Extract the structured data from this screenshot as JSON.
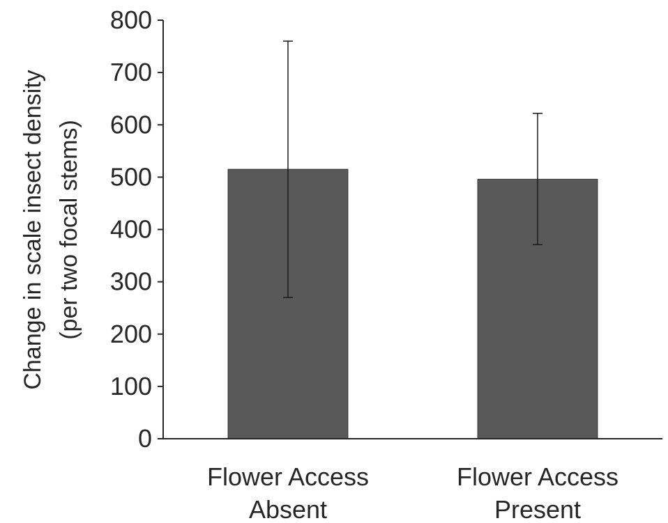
{
  "chart_data": {
    "type": "bar",
    "title": "",
    "categories": [
      [
        "Flower Access",
        "Absent"
      ],
      [
        "Flower Access",
        "Present"
      ]
    ],
    "values": [
      515,
      496
    ],
    "error_low": [
      270,
      371
    ],
    "error_high": [
      760,
      622
    ],
    "ylabel": [
      "Change in scale insect density",
      "(per two focal stems)"
    ],
    "xlabel": "",
    "ylim": [
      0,
      800
    ],
    "yticks": [
      0,
      100,
      200,
      300,
      400,
      500,
      600,
      700,
      800
    ],
    "grid": false,
    "legend": "none",
    "bar_color": "#595959",
    "axis_color": "#262626"
  }
}
